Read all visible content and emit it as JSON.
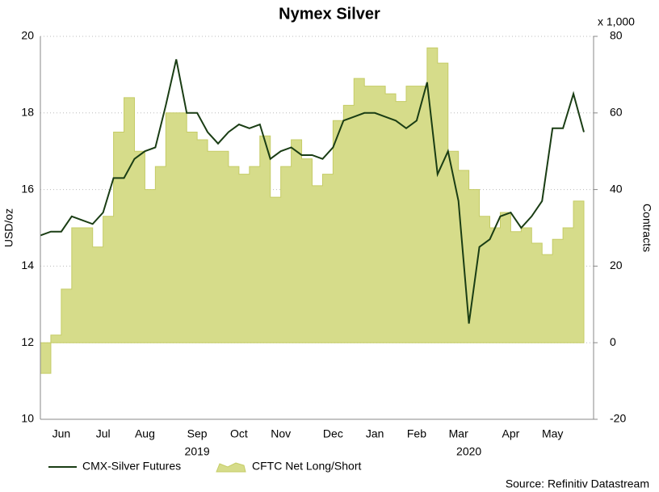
{
  "chart_data": {
    "type": "line_area",
    "title": "Nymex Silver",
    "y_label": "USD/oz",
    "y2_label": "Contracts",
    "y2_multiplier": "x 1,000",
    "source": "Source: Refinitiv Datastream",
    "year_labels": [
      "2019",
      "2020"
    ],
    "categories": [
      null,
      null,
      "Jun",
      null,
      null,
      null,
      "Jul",
      null,
      null,
      null,
      "Aug",
      null,
      null,
      null,
      null,
      "Sep",
      null,
      null,
      null,
      "Oct",
      null,
      null,
      null,
      "Nov",
      null,
      null,
      null,
      null,
      "Dec",
      null,
      null,
      null,
      "Jan",
      null,
      null,
      null,
      "Feb",
      null,
      null,
      null,
      "Mar",
      null,
      null,
      null,
      null,
      "Apr",
      null,
      null,
      null,
      "May",
      null,
      null,
      null
    ],
    "series": [
      {
        "name": "CMX-Silver Futures",
        "color": "#1a3d14",
        "axis": "y",
        "values": [
          14.8,
          14.9,
          14.9,
          15.3,
          15.2,
          15.1,
          15.4,
          16.3,
          16.3,
          16.8,
          17.0,
          17.1,
          18.2,
          19.4,
          18.0,
          18.0,
          17.5,
          17.2,
          17.5,
          17.7,
          17.6,
          17.7,
          16.8,
          17.0,
          17.1,
          16.9,
          16.9,
          16.8,
          17.1,
          17.8,
          17.9,
          18.0,
          18.0,
          17.9,
          17.8,
          17.6,
          17.8,
          18.8,
          16.4,
          17.0,
          15.7,
          12.5,
          14.5,
          14.7,
          15.3,
          15.4,
          15.0,
          15.3,
          15.7,
          17.6,
          17.6,
          18.5,
          17.5
        ]
      },
      {
        "name": "CFTC Net Long/Short",
        "color": "#d6dc8a",
        "axis": "y2",
        "values": [
          -8,
          2,
          14,
          30,
          30,
          25,
          33,
          55,
          64,
          50,
          40,
          46,
          60,
          60,
          55,
          53,
          50,
          50,
          46,
          44,
          46,
          54,
          38,
          46,
          53,
          48,
          41,
          44,
          58,
          62,
          69,
          67,
          67,
          65,
          63,
          67,
          67,
          77,
          73,
          50,
          45,
          40,
          33,
          30,
          34,
          29,
          30,
          26,
          23,
          27,
          30,
          37,
          37
        ]
      }
    ],
    "ylim": [
      10,
      20
    ],
    "yticks": [
      10,
      12,
      14,
      16,
      18,
      20
    ],
    "y2lim": [
      -20,
      80
    ],
    "y2ticks": [
      -20,
      0,
      20,
      40,
      60,
      80
    ],
    "grid": true
  }
}
